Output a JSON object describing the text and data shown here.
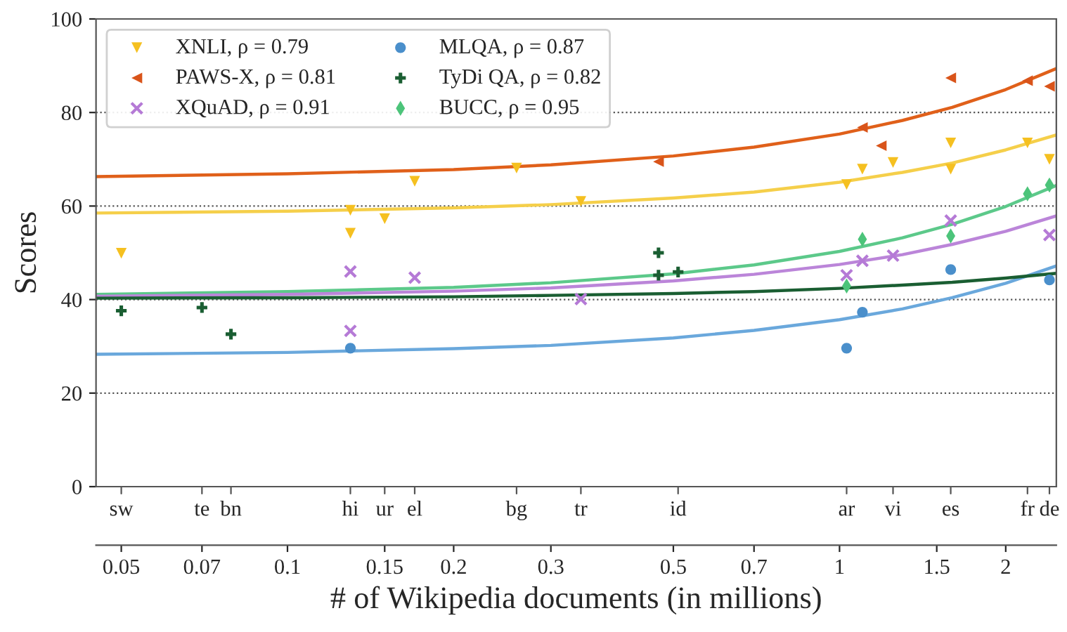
{
  "chart_data": {
    "type": "scatter",
    "xlabel": "# of Wikipedia documents (in millions)",
    "ylabel": "Scores",
    "log": "x",
    "grid": "y",
    "legend": "top left",
    "xlim": [
      0.045,
      2.47
    ],
    "ylim": [
      0,
      100
    ],
    "xticks": [
      0.05,
      0.07,
      0.1,
      0.15,
      0.2,
      0.3,
      0.5,
      0.7,
      1,
      1.5,
      2
    ],
    "yticks": [
      0,
      20,
      40,
      60,
      80,
      100
    ],
    "annotations": [
      {
        "text": "sw",
        "x": 0.05
      },
      {
        "text": "te",
        "x": 0.07
      },
      {
        "text": "bn",
        "x": 0.079
      },
      {
        "text": "hi",
        "x": 0.13
      },
      {
        "text": "ur",
        "x": 0.15
      },
      {
        "text": "el",
        "x": 0.17
      },
      {
        "text": "bg",
        "x": 0.26
      },
      {
        "text": "tr",
        "x": 0.34
      },
      {
        "text": "id",
        "x": 0.51
      },
      {
        "text": "ar",
        "x": 1.03
      },
      {
        "text": "vi",
        "x": 1.25
      },
      {
        "text": "es",
        "x": 1.59
      },
      {
        "text": "fr",
        "x": 2.19
      },
      {
        "text": "de",
        "x": 2.4
      }
    ],
    "series": [
      {
        "type": "line",
        "color": "#e0601a",
        "x": [
          0.045,
          0.1,
          0.2,
          0.3,
          0.5,
          0.7,
          1,
          1.3,
          1.6,
          2,
          2.47
        ],
        "values": [
          66.3,
          66.9,
          67.8,
          68.8,
          70.7,
          72.6,
          75.4,
          78.3,
          81.1,
          84.9,
          89.4
        ]
      },
      {
        "type": "line",
        "color": "#f5cf4a",
        "x": [
          0.045,
          0.1,
          0.2,
          0.3,
          0.5,
          0.7,
          1,
          1.3,
          1.6,
          2,
          2.47
        ],
        "values": [
          58.5,
          58.9,
          59.6,
          60.3,
          61.7,
          63.0,
          65.1,
          67.2,
          69.2,
          72.0,
          75.2
        ]
      },
      {
        "type": "line",
        "color": "#5cc98a",
        "x": [
          0.045,
          0.1,
          0.2,
          0.3,
          0.5,
          0.7,
          1,
          1.3,
          1.6,
          2,
          2.47
        ],
        "values": [
          41.1,
          41.7,
          42.6,
          43.6,
          45.5,
          47.4,
          50.3,
          53.2,
          56.1,
          59.9,
          64.4
        ]
      },
      {
        "type": "line",
        "color": "#bb85d9",
        "x": [
          0.045,
          0.1,
          0.2,
          0.3,
          0.5,
          0.7,
          1,
          1.3,
          1.6,
          2,
          2.47
        ],
        "values": [
          40.7,
          41.1,
          41.8,
          42.5,
          44.0,
          45.4,
          47.5,
          49.6,
          51.8,
          54.6,
          57.9
        ]
      },
      {
        "type": "line",
        "color": "#6aa8dc",
        "x": [
          0.045,
          0.1,
          0.2,
          0.3,
          0.5,
          0.7,
          1,
          1.3,
          1.6,
          2,
          2.47
        ],
        "values": [
          28.3,
          28.7,
          29.5,
          30.2,
          31.8,
          33.4,
          35.7,
          38.0,
          40.4,
          43.5,
          47.2
        ]
      },
      {
        "type": "line",
        "color": "#1a5e32",
        "x": [
          0.045,
          0.1,
          0.2,
          0.3,
          0.5,
          0.7,
          1,
          1.3,
          1.6,
          2,
          2.47
        ],
        "values": [
          40.3,
          40.4,
          40.6,
          40.9,
          41.3,
          41.7,
          42.4,
          43.1,
          43.7,
          44.6,
          45.6
        ]
      },
      {
        "name": "XNLI, ρ = 0.79",
        "color": "#f5c020",
        "marker": "triangle-down",
        "x": [
          0.05,
          0.13,
          0.13,
          0.15,
          0.17,
          0.26,
          0.34,
          1.03,
          1.1,
          1.25,
          1.59,
          1.59,
          2.19,
          2.4
        ],
        "values": [
          49.9,
          59.1,
          54.2,
          57.3,
          65.3,
          68.1,
          61.0,
          64.6,
          67.9,
          69.3,
          73.5,
          67.9,
          73.5,
          70.0
        ]
      },
      {
        "name": "PAWS-X, ρ = 0.81",
        "color": "#d9541a",
        "marker": "triangle-left",
        "x": [
          0.47,
          1.1,
          1.19,
          1.59,
          2.19,
          2.4
        ],
        "values": [
          69.5,
          76.8,
          72.9,
          87.4,
          86.8,
          85.6
        ]
      },
      {
        "name": "XQuAD, ρ = 0.91",
        "color": "#b57ad6",
        "marker": "cross",
        "x": [
          0.13,
          0.13,
          0.17,
          0.34,
          1.03,
          1.1,
          1.25,
          1.59,
          2.4
        ],
        "values": [
          46.0,
          33.3,
          44.7,
          40.1,
          45.2,
          48.3,
          49.4,
          56.9,
          53.8
        ]
      },
      {
        "name": "MLQA, ρ = 0.87",
        "color": "#4a8fcb",
        "marker": "circle",
        "x": [
          0.13,
          1.03,
          1.1,
          1.59,
          2.4
        ],
        "values": [
          29.6,
          29.6,
          37.3,
          46.4,
          44.2
        ]
      },
      {
        "name": "TyDi QA, ρ = 0.82",
        "color": "#1a5e32",
        "marker": "plus",
        "x": [
          0.05,
          0.07,
          0.079,
          0.47,
          0.47,
          0.51
        ],
        "values": [
          37.6,
          38.3,
          32.6,
          50.0,
          45.2,
          45.9
        ]
      },
      {
        "name": "BUCC, ρ = 0.95",
        "color": "#4cc47a",
        "marker": "diamond",
        "x": [
          1.03,
          1.1,
          1.59,
          2.19,
          2.4
        ],
        "values": [
          42.9,
          52.9,
          53.6,
          62.6,
          64.5
        ]
      }
    ]
  }
}
